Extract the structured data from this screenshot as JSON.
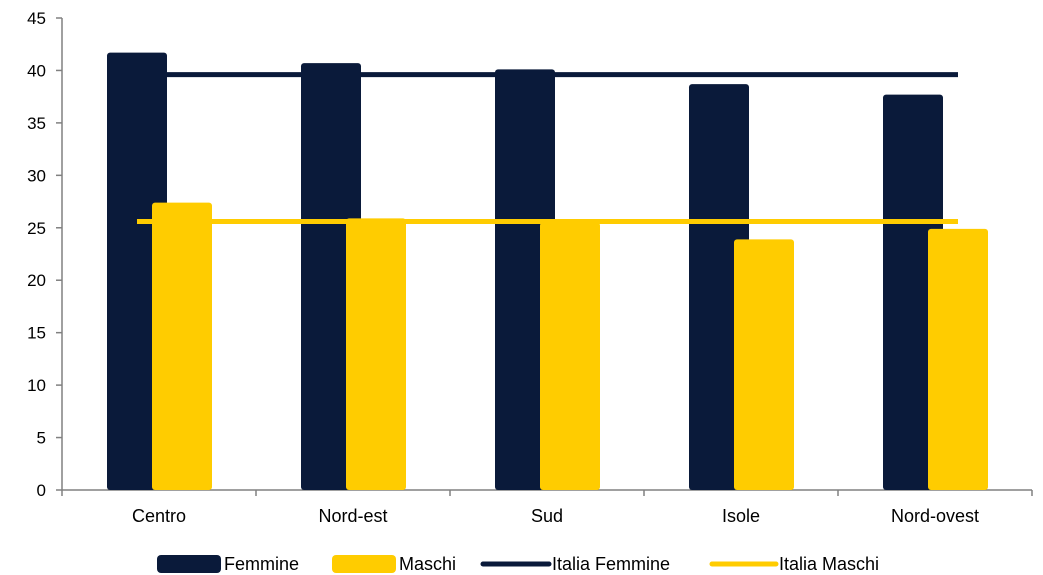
{
  "colors": {
    "femmine": "#0a1a3a",
    "maschi": "#ffcc00",
    "italia_femmine": "#0a1a3a",
    "italia_maschi": "#ffcc00",
    "axis": "#808080"
  },
  "chart_data": {
    "type": "bar",
    "categories": [
      "Centro",
      "Nord-est",
      "Sud",
      "Isole",
      "Nord-ovest"
    ],
    "series": [
      {
        "name": "Femmine",
        "values": [
          41.7,
          40.7,
          40.1,
          38.7,
          37.7
        ]
      },
      {
        "name": "Maschi",
        "values": [
          27.4,
          25.9,
          25.5,
          23.9,
          24.9
        ]
      }
    ],
    "reference_lines": [
      {
        "name": "Italia Femmine",
        "value": 39.6
      },
      {
        "name": "Italia Maschi",
        "value": 25.6
      }
    ],
    "ylim": [
      0,
      45
    ],
    "yticks": [
      "0",
      "5",
      "10",
      "15",
      "20",
      "25",
      "30",
      "35",
      "40",
      "45"
    ],
    "grid": false,
    "legend_position": "bottom",
    "legend": [
      "Femmine",
      "Maschi",
      "Italia Femmine",
      "Italia Maschi"
    ]
  }
}
